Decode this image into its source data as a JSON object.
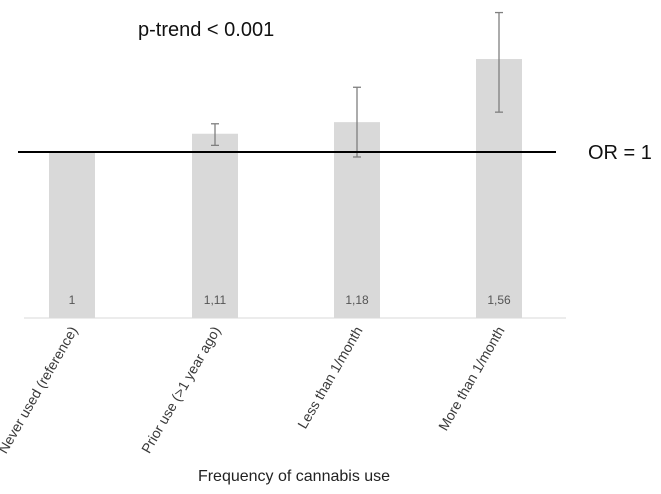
{
  "chart_data": {
    "type": "bar",
    "title": "",
    "xlabel": "Frequency of cannabis use",
    "ylabel": "",
    "categories": [
      "Never used (reference)",
      "Prior use (>1 year ago)",
      "Less than 1/month",
      "More than 1/month"
    ],
    "values": [
      1,
      1.11,
      1.18,
      1.56
    ],
    "value_labels": [
      "1",
      "1,11",
      "1,18",
      "1,56"
    ],
    "error_low": [
      1,
      1.04,
      0.97,
      1.24
    ],
    "error_high": [
      1,
      1.17,
      1.39,
      1.84
    ],
    "ylim": [
      0,
      2.0
    ],
    "reference_line": {
      "value": 1,
      "label": "OR = 1"
    },
    "annotation": "p-trend < 0.001",
    "grid": false,
    "legend": "none",
    "colors": {
      "bar": "#d9d9d9",
      "error_bar": "#7f7f7f",
      "reference_line": "#000000",
      "axis": "#d9d9d9"
    }
  }
}
